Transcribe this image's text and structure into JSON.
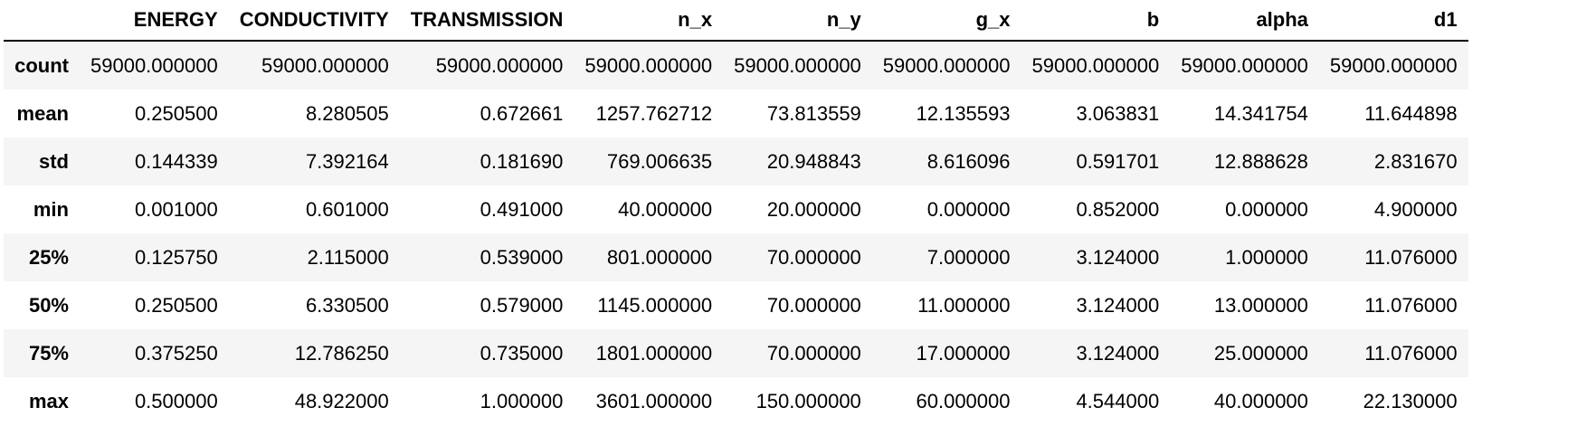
{
  "table": {
    "columns": [
      "",
      "ENERGY",
      "CONDUCTIVITY",
      "TRANSMISSION",
      "n_x",
      "n_y",
      "g_x",
      "b",
      "alpha",
      "d1"
    ],
    "rows": [
      {
        "label": "count",
        "values": [
          "59000.000000",
          "59000.000000",
          "59000.000000",
          "59000.000000",
          "59000.000000",
          "59000.000000",
          "59000.000000",
          "59000.000000",
          "59000.000000"
        ]
      },
      {
        "label": "mean",
        "values": [
          "0.250500",
          "8.280505",
          "0.672661",
          "1257.762712",
          "73.813559",
          "12.135593",
          "3.063831",
          "14.341754",
          "11.644898"
        ]
      },
      {
        "label": "std",
        "values": [
          "0.144339",
          "7.392164",
          "0.181690",
          "769.006635",
          "20.948843",
          "8.616096",
          "0.591701",
          "12.888628",
          "2.831670"
        ]
      },
      {
        "label": "min",
        "values": [
          "0.001000",
          "0.601000",
          "0.491000",
          "40.000000",
          "20.000000",
          "0.000000",
          "0.852000",
          "0.000000",
          "4.900000"
        ]
      },
      {
        "label": "25%",
        "values": [
          "0.125750",
          "2.115000",
          "0.539000",
          "801.000000",
          "70.000000",
          "7.000000",
          "3.124000",
          "1.000000",
          "11.076000"
        ]
      },
      {
        "label": "50%",
        "values": [
          "0.250500",
          "6.330500",
          "0.579000",
          "1145.000000",
          "70.000000",
          "11.000000",
          "3.124000",
          "13.000000",
          "11.076000"
        ]
      },
      {
        "label": "75%",
        "values": [
          "0.375250",
          "12.786250",
          "0.735000",
          "1801.000000",
          "70.000000",
          "17.000000",
          "3.124000",
          "25.000000",
          "11.076000"
        ]
      },
      {
        "label": "max",
        "values": [
          "0.500000",
          "48.922000",
          "1.000000",
          "3601.000000",
          "150.000000",
          "60.000000",
          "4.544000",
          "40.000000",
          "22.130000"
        ]
      }
    ]
  }
}
